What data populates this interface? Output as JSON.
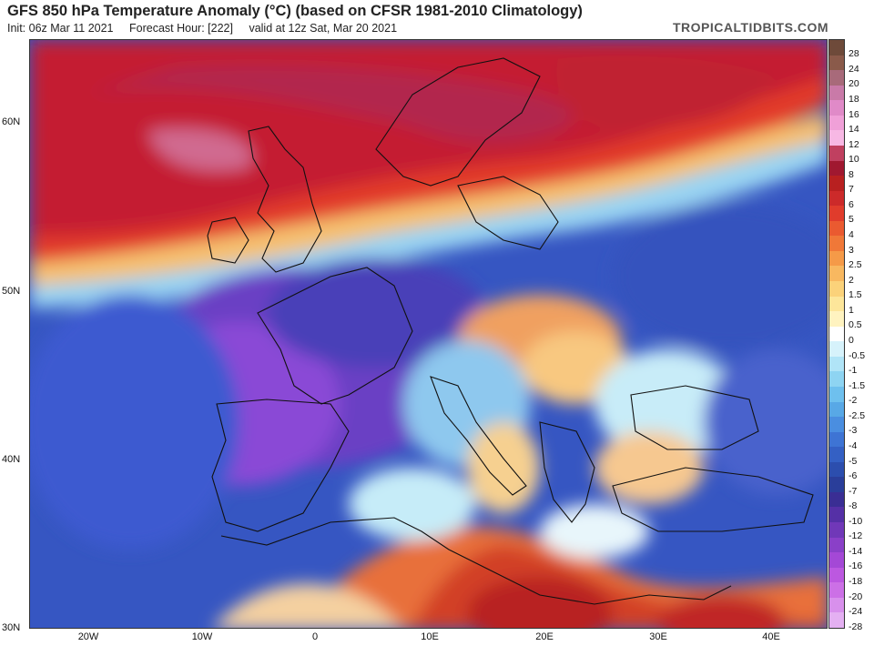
{
  "header": {
    "title": "GFS 850 hPa Temperature Anomaly (°C) (based on CFSR 1981-2010 Climatology)",
    "init": "Init: 06z Mar 11 2021",
    "forecast_hour": "Forecast Hour: [222]",
    "valid": "valid at 12z Sat, Mar 20 2021",
    "brand": "TROPICALTIDBITS.COM"
  },
  "map": {
    "lat_labels": [
      "60N",
      "50N",
      "40N",
      "30N"
    ],
    "lon_labels": [
      "20W",
      "10W",
      "0",
      "10E",
      "20E",
      "30E",
      "40E"
    ]
  },
  "colorbar": {
    "labels": [
      "28",
      "24",
      "20",
      "18",
      "16",
      "14",
      "12",
      "10",
      "8",
      "7",
      "6",
      "5",
      "4",
      "3",
      "2.5",
      "2",
      "1.5",
      "1",
      "0.5",
      "0",
      "-0.5",
      "-1",
      "-1.5",
      "-2",
      "-2.5",
      "-3",
      "-4",
      "-5",
      "-6",
      "-7",
      "-8",
      "-10",
      "-12",
      "-14",
      "-16",
      "-18",
      "-20",
      "-24",
      "-28"
    ],
    "colors": [
      "#6e4a3a",
      "#8a5a4a",
      "#a86a7a",
      "#c97aa8",
      "#e08ac8",
      "#f0a0d8",
      "#f7b8e4",
      "#c04060",
      "#a01830",
      "#b82020",
      "#cc2a2a",
      "#e03c2c",
      "#ea5a30",
      "#f07838",
      "#f59a48",
      "#f8b860",
      "#fbd27a",
      "#fde69a",
      "#fff3c0",
      "#ffffff",
      "#d6f2fb",
      "#b0e4f7",
      "#8ed4f2",
      "#6ec0ee",
      "#58a8e6",
      "#4a8ee0",
      "#3e74d4",
      "#3460c4",
      "#2c4eae",
      "#2a3e9a",
      "#3a2e94",
      "#5530a6",
      "#7038b8",
      "#8a40c8",
      "#a448d6",
      "#bc58e0",
      "#cc70e6",
      "#d890ec",
      "#e4b0f2"
    ]
  }
}
